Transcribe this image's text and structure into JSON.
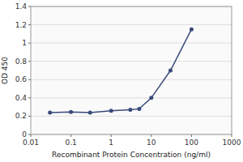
{
  "chart_data": {
    "type": "line",
    "x": [
      0.03,
      0.1,
      0.3,
      1.0,
      3.0,
      5.0,
      10.0,
      30.0,
      100.0
    ],
    "values": [
      0.24,
      0.245,
      0.24,
      0.26,
      0.27,
      0.28,
      0.4,
      0.7,
      1.15
    ],
    "xlabel": "Recombinant Protein Concentration (ng/ml)",
    "ylabel": "OD 450",
    "xlim": [
      0.01,
      1000
    ],
    "ylim": [
      0,
      1.4
    ],
    "xticks": [
      0.01,
      0.1,
      1,
      10,
      100,
      1000
    ],
    "yticks": [
      0,
      0.2,
      0.4,
      0.6,
      0.8,
      1,
      1.2,
      1.4
    ],
    "log": "x",
    "grid": true,
    "color": "#3a4a7a",
    "marker": "circle"
  }
}
